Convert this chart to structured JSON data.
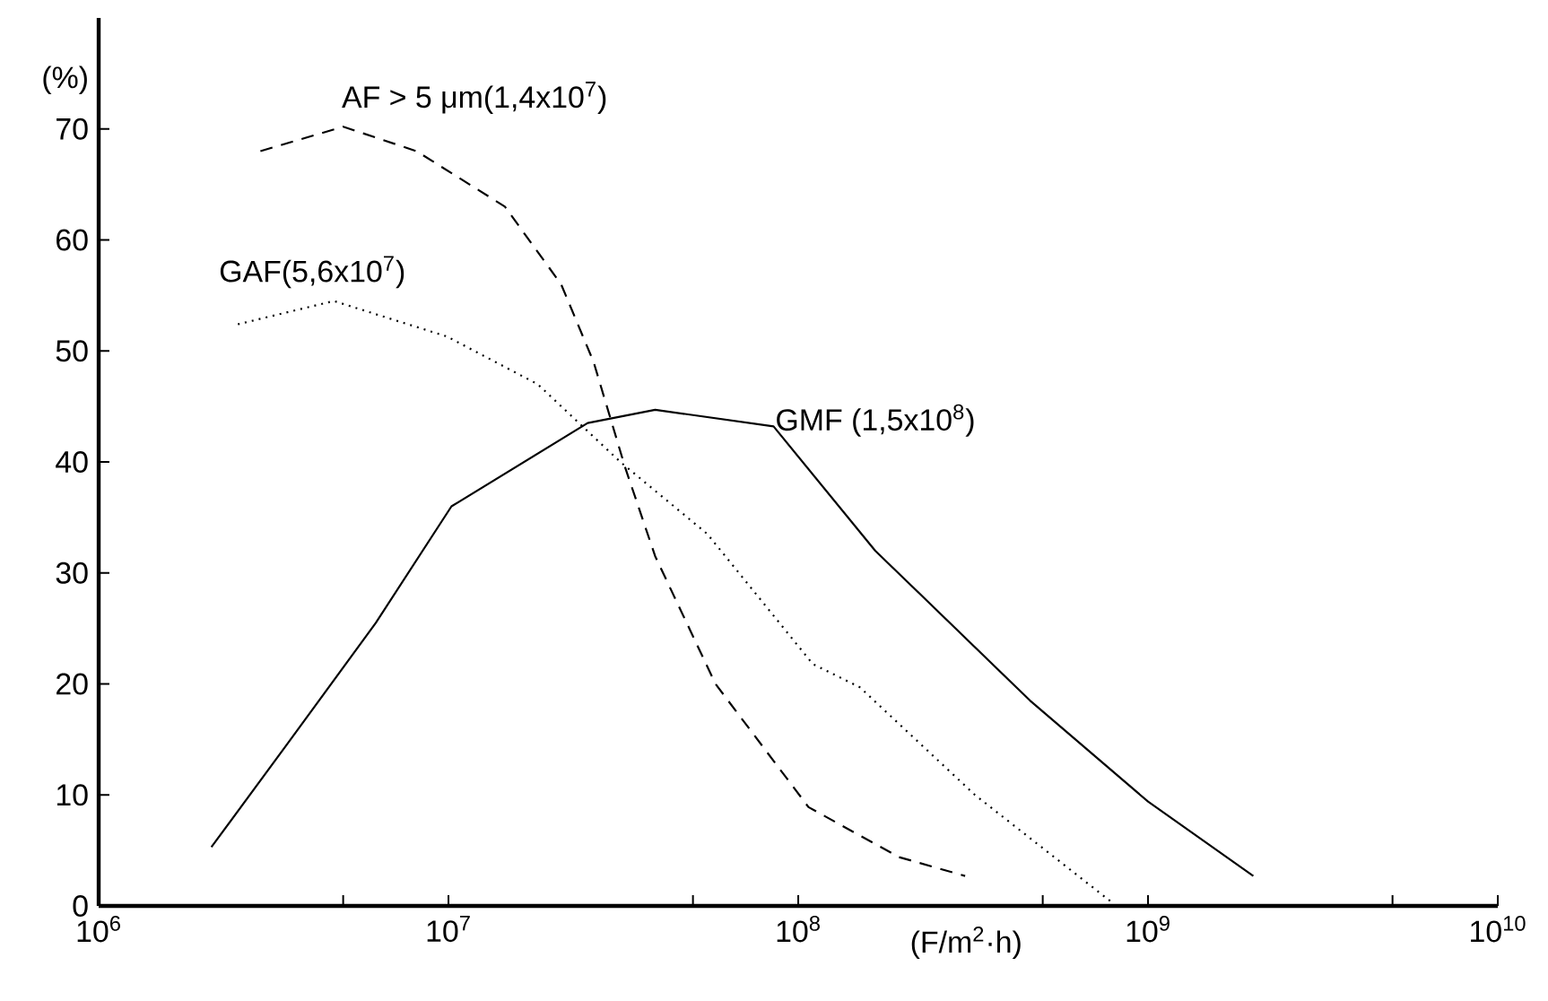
{
  "chart_data": {
    "type": "line",
    "xlabel": "(F/m$^{2}$·h)",
    "ylabel": "(%)",
    "log": "x",
    "grid": false,
    "legend": false,
    "marker": "none",
    "xlim": [
      1000000,
      10000000000
    ],
    "ylim": [
      0,
      80
    ],
    "xticks": [
      {
        "value": 1000000,
        "label": "10$^{6}$"
      },
      {
        "value": 5000000,
        "label": null
      },
      {
        "value": 10000000,
        "label": "10$^{7}$"
      },
      {
        "value": 50000000,
        "label": null
      },
      {
        "value": 100000000,
        "label": "10$^{8}$"
      },
      {
        "value": 500000000,
        "label": null
      },
      {
        "value": 1000000000,
        "label": "10$^{9}$"
      },
      {
        "value": 5000000000,
        "label": null
      },
      {
        "value": 10000000000,
        "label": "10$^{10}$"
      }
    ],
    "yticks": [
      0,
      10,
      20,
      30,
      40,
      50,
      60,
      70
    ],
    "series": [
      {
        "name": "AF > 5 μm(1,4x10$^{7}$)",
        "color": "#000000",
        "line_style": "dashed",
        "x": [
          2900000,
          5000000,
          8100000,
          14500000,
          21000000,
          26000000,
          32000000,
          39000000,
          58000000,
          107000000,
          194000000,
          300000000
        ],
        "values": [
          68,
          70.2,
          68,
          63,
          56,
          49,
          39.5,
          31.5,
          20,
          8.9,
          4.4,
          2.7
        ]
      },
      {
        "name": "GAF(5,6x10$^{7}$)",
        "color": "#000000",
        "line_style": "dotted",
        "x": [
          2500000,
          4700000,
          9900000,
          18000000,
          31000000,
          55000000,
          110000000,
          150000000,
          320000000,
          790000000
        ],
        "values": [
          52.4,
          54.5,
          51.3,
          47,
          40,
          33.5,
          21.8,
          19.7,
          10,
          0.3
        ]
      },
      {
        "name": "GMF (1,5x10$^{8}$)",
        "color": "#000000",
        "line_style": "solid",
        "x": [
          2100000,
          3500000,
          6200000,
          10200000,
          25000000,
          39000000,
          85000000,
          166000000,
          460000000,
          1000000000,
          2000000000
        ],
        "values": [
          5.3,
          14.8,
          25.5,
          36,
          43.5,
          44.7,
          43.2,
          32,
          18.5,
          9.4,
          2.7
        ]
      }
    ]
  }
}
